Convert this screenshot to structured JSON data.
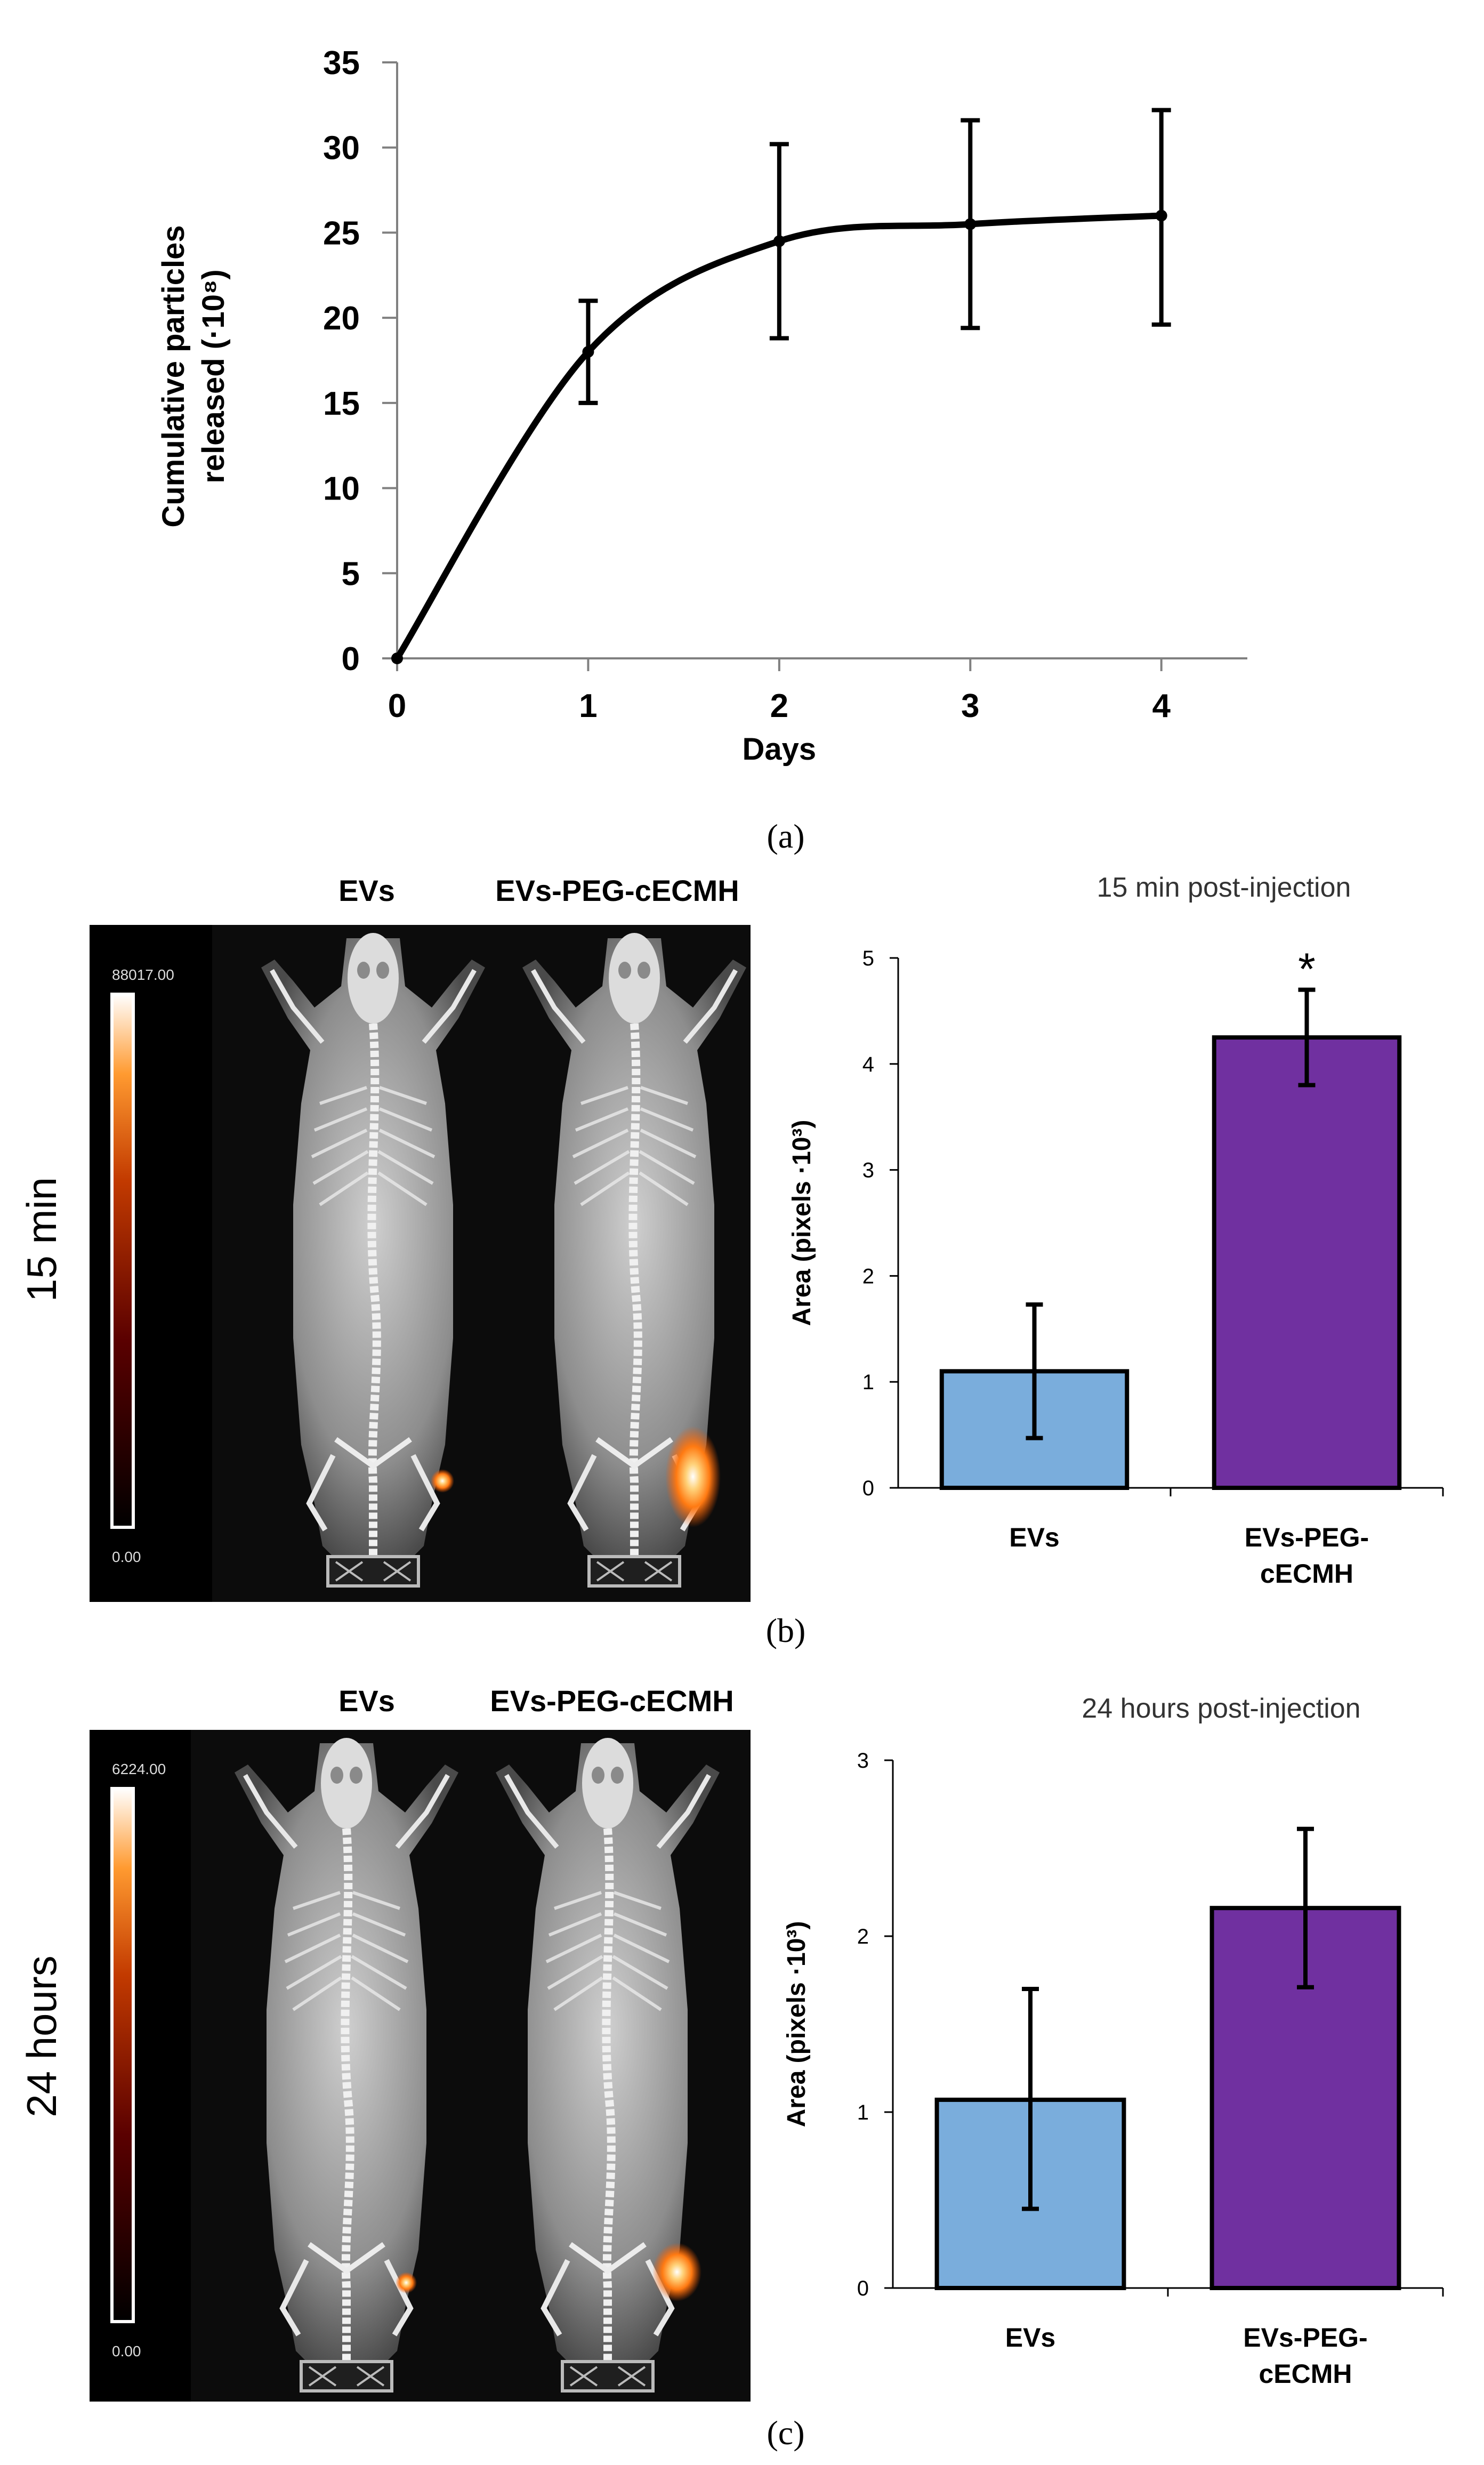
{
  "figure": {
    "panel_a_label": "(a)",
    "panel_b_label": "(b)",
    "panel_c_label": "(c)"
  },
  "panel_b_image": {
    "time_label": "15 min",
    "col1_label": "EVs",
    "col2_label": "EVs-PEG-cECMH",
    "scale_max": "88017.00",
    "scale_min": "0.00"
  },
  "panel_c_image": {
    "time_label": "24 hours",
    "col1_label": "EVs",
    "col2_label": "EVs-PEG-cECMH",
    "scale_max": "6224.00",
    "scale_min": "0.00"
  },
  "colors": {
    "evs": "#7aaddc",
    "peg": "#7030a0",
    "line": "#000000",
    "image_bg": "#101010"
  },
  "chart_data": [
    {
      "id": "a",
      "type": "line",
      "title": "",
      "xlabel": "Days",
      "ylabel": "Cumulative particles released (·10⁸)",
      "ylabel_line1": "Cumulative particles",
      "ylabel_line2": "released (·10⁸)",
      "x": [
        0,
        1,
        2,
        3,
        4
      ],
      "y": [
        0,
        18,
        24.5,
        25.5,
        26
      ],
      "err_low": [
        0,
        15,
        18.8,
        19.4,
        19.6
      ],
      "err_high": [
        0,
        21,
        30.2,
        31.6,
        32.2
      ],
      "xticks": [
        "0",
        "1",
        "2",
        "3",
        "4"
      ],
      "yticks": [
        "0",
        "5",
        "10",
        "15",
        "20",
        "25",
        "30",
        "35"
      ],
      "xlim": [
        0,
        4.45
      ],
      "ylim": [
        0,
        35
      ],
      "grid": false
    },
    {
      "id": "b",
      "type": "bar",
      "title": "15 min post-injection",
      "ylabel": "Area (pixels ·10³)",
      "categories": [
        "EVs",
        "EVs-PEG-cECMH"
      ],
      "category_lines": [
        [
          "EVs"
        ],
        [
          "EVs-PEG-",
          "cECMH"
        ]
      ],
      "values": [
        1.1,
        4.25
      ],
      "err_low": [
        0.47,
        3.8
      ],
      "err_high": [
        1.73,
        4.7
      ],
      "annotations": [
        "",
        "*"
      ],
      "yticks": [
        "0",
        "1",
        "2",
        "3",
        "4",
        "5"
      ],
      "ylim": [
        0,
        5
      ],
      "grid": false
    },
    {
      "id": "c",
      "type": "bar",
      "title": "24 hours post-injection",
      "ylabel": "Area (pixels ·10³)",
      "categories": [
        "EVs",
        "EVs-PEG-cECMH"
      ],
      "category_lines": [
        [
          "EVs"
        ],
        [
          "EVs-PEG-",
          "cECMH"
        ]
      ],
      "values": [
        1.07,
        2.16
      ],
      "err_low": [
        0.45,
        1.71
      ],
      "err_high": [
        1.7,
        2.61
      ],
      "annotations": [
        "",
        ""
      ],
      "yticks": [
        "0",
        "1",
        "2",
        "3"
      ],
      "ylim": [
        0,
        3
      ],
      "grid": false
    }
  ]
}
